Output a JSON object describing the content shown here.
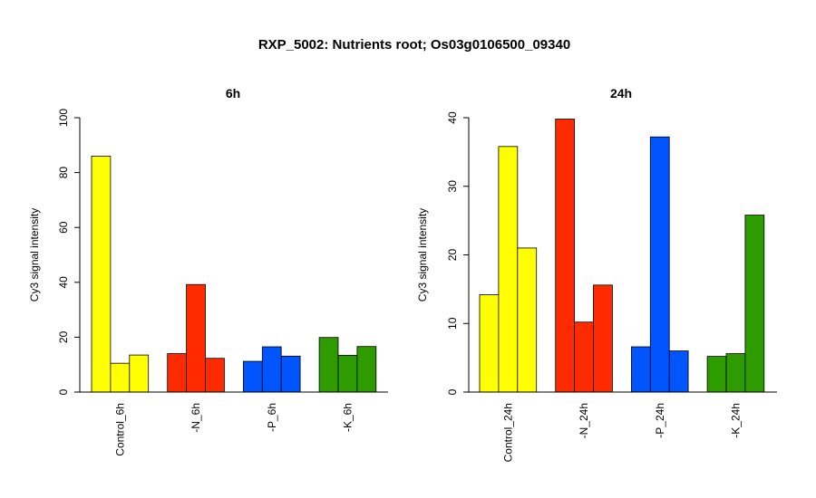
{
  "page_title": "RXP_5002: Nutrients root; Os03g0106500_09340",
  "colors": {
    "control": "#FFFF00",
    "N": "#FF2A00",
    "P": "#0055FF",
    "K": "#2E9B00"
  },
  "chart_data": [
    {
      "type": "bar",
      "title": "6h",
      "ylabel": "Cy3 signal intensity",
      "xlabel": "",
      "ylim": [
        0,
        100
      ],
      "yticks": [
        0,
        20,
        40,
        60,
        80,
        100
      ],
      "grid": false,
      "categories": [
        "Control_6h",
        "-N_6h",
        "-P_6h",
        "-K_6h"
      ],
      "category_colors": [
        "#FFFF00",
        "#FF2A00",
        "#0055FF",
        "#2E9B00"
      ],
      "groups": [
        {
          "category": "Control_6h",
          "values": [
            86,
            10.5,
            13.5
          ]
        },
        {
          "category": "-N_6h",
          "values": [
            14,
            39.2,
            12.3
          ]
        },
        {
          "category": "-P_6h",
          "values": [
            11.2,
            16.5,
            13.1
          ]
        },
        {
          "category": "-K_6h",
          "values": [
            19.9,
            13.4,
            16.6
          ]
        }
      ]
    },
    {
      "type": "bar",
      "title": "24h",
      "ylabel": "Cy3 signal intensity",
      "xlabel": "",
      "ylim": [
        0,
        40
      ],
      "yticks": [
        0,
        10,
        20,
        30,
        40
      ],
      "grid": false,
      "categories": [
        "Control_24h",
        "-N_24h",
        "-P_24h",
        "-K_24h"
      ],
      "category_colors": [
        "#FFFF00",
        "#FF2A00",
        "#0055FF",
        "#2E9B00"
      ],
      "groups": [
        {
          "category": "Control_24h",
          "values": [
            14.2,
            35.8,
            21
          ]
        },
        {
          "category": "-N_24h",
          "values": [
            39.8,
            10.2,
            15.6
          ]
        },
        {
          "category": "-P_24h",
          "values": [
            6.6,
            37.2,
            6
          ]
        },
        {
          "category": "-K_24h",
          "values": [
            5.2,
            5.6,
            25.8
          ]
        }
      ]
    }
  ]
}
